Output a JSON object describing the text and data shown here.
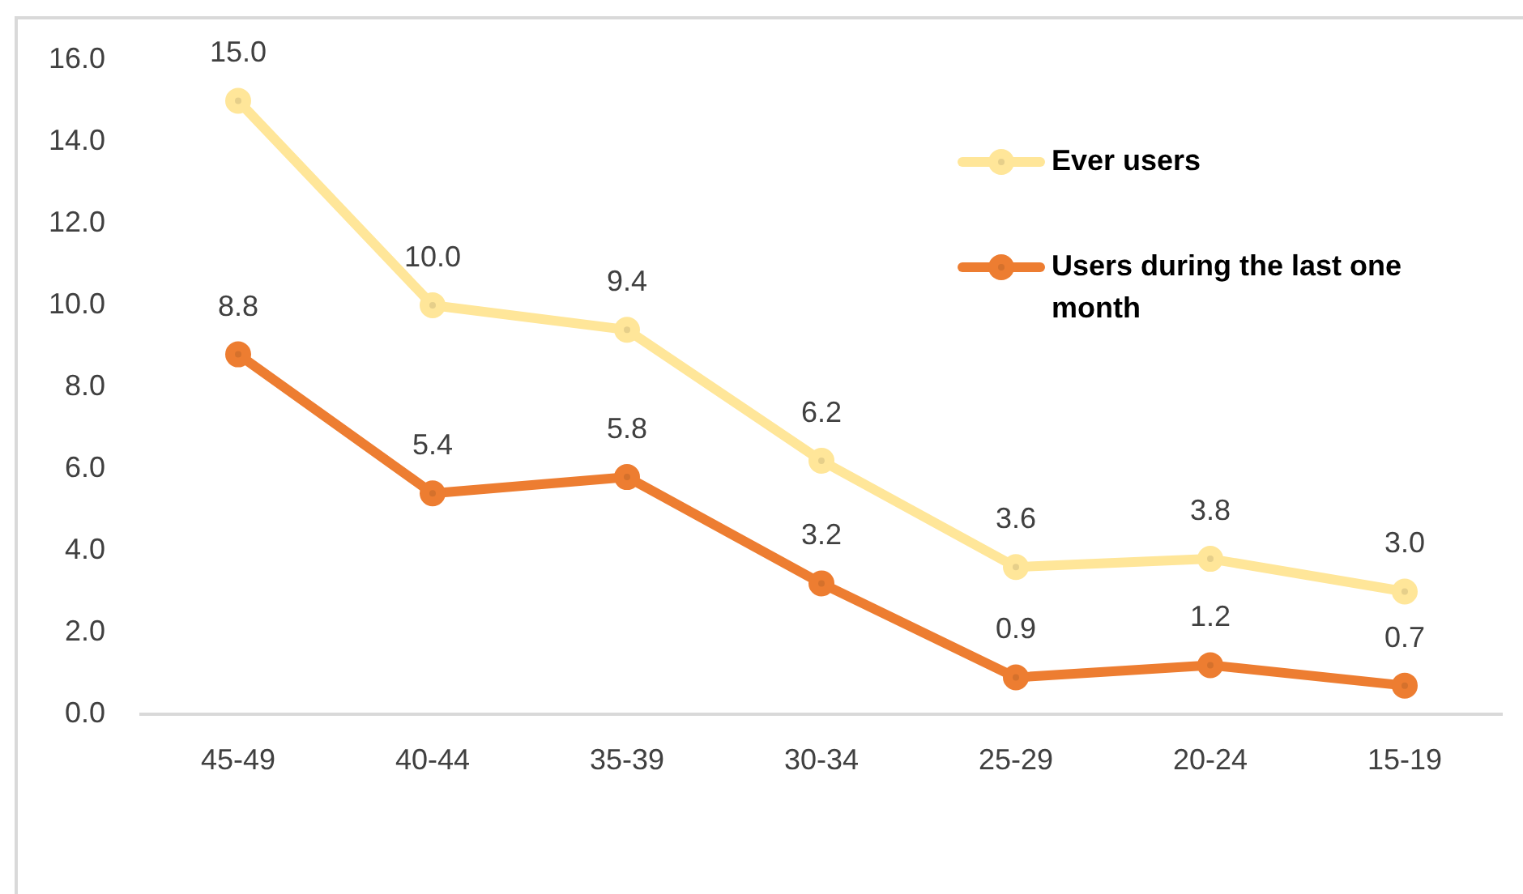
{
  "chart_data": {
    "type": "line",
    "categories": [
      "45-49",
      "40-44",
      "35-39",
      "30-34",
      "25-29",
      "20-24",
      "15-19"
    ],
    "series": [
      {
        "name": "Ever users",
        "color": "#ffe699",
        "values": [
          15.0,
          10.0,
          9.4,
          6.2,
          3.6,
          3.8,
          3.0
        ],
        "value_labels": [
          "15.0",
          "10.0",
          "9.4",
          "6.2",
          "3.6",
          "3.8",
          "3.0"
        ]
      },
      {
        "name": "Users during the last one month",
        "color": "#ed7d31",
        "values": [
          8.8,
          5.4,
          5.8,
          3.2,
          0.9,
          1.2,
          0.7
        ],
        "value_labels": [
          "8.8",
          "5.4",
          "5.8",
          "3.2",
          "0.9",
          "1.2",
          "0.7"
        ]
      }
    ],
    "ylim": [
      0,
      16
    ],
    "yticks": [
      {
        "value": 0,
        "label": "0.0"
      },
      {
        "value": 2,
        "label": "2.0"
      },
      {
        "value": 4,
        "label": "4.0"
      },
      {
        "value": 6,
        "label": "6.0"
      },
      {
        "value": 8,
        "label": "8.0"
      },
      {
        "value": 10,
        "label": "10.0"
      },
      {
        "value": 12,
        "label": "12.0"
      },
      {
        "value": 14,
        "label": "14.0"
      },
      {
        "value": 16,
        "label": "16.0"
      }
    ],
    "legend": "top right",
    "marker": "circle"
  }
}
